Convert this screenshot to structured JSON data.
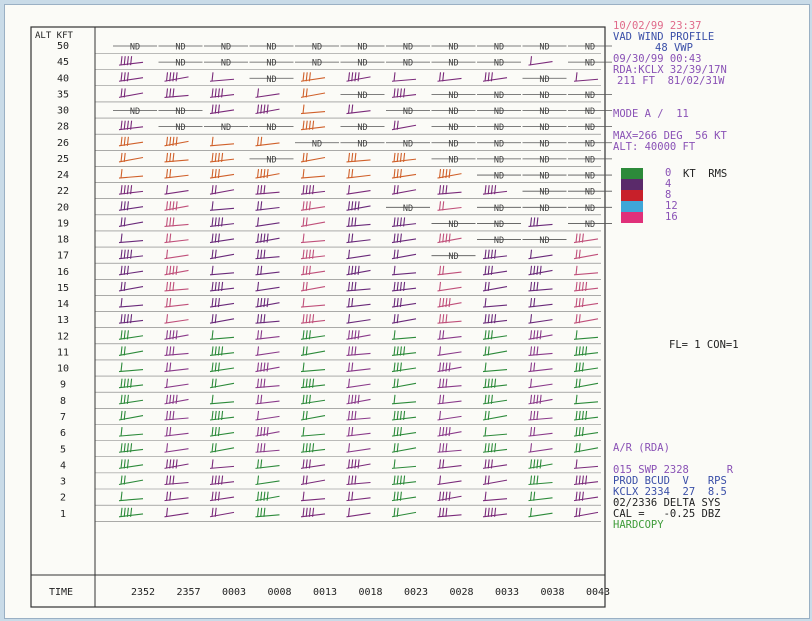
{
  "chart_data": {
    "type": "vad_wind_profile",
    "title": "VAD WIND PROFILE",
    "ylabel": "ALT KFT",
    "xlabel": "TIME",
    "altitudes": [
      "50",
      "45",
      "40",
      "35",
      "30",
      "28",
      "26",
      "25",
      "24",
      "22",
      "20",
      "19",
      "18",
      "17",
      "16",
      "15",
      "14",
      "13",
      "12",
      "11",
      "10",
      "9",
      "8",
      "7",
      "6",
      "5",
      "4",
      "3",
      "2",
      "1"
    ],
    "times": [
      "2352",
      "2357",
      "0003",
      "0008",
      "0013",
      "0018",
      "0023",
      "0028",
      "0033",
      "0038",
      "0043"
    ],
    "nd_label": "ND",
    "nd_cells": [
      [
        0,
        0
      ],
      [
        0,
        1
      ],
      [
        0,
        2
      ],
      [
        0,
        3
      ],
      [
        0,
        4
      ],
      [
        0,
        5
      ],
      [
        0,
        6
      ],
      [
        0,
        7
      ],
      [
        0,
        8
      ],
      [
        0,
        9
      ],
      [
        0,
        10
      ],
      [
        1,
        1
      ],
      [
        1,
        2
      ],
      [
        1,
        3
      ],
      [
        1,
        4
      ],
      [
        1,
        5
      ],
      [
        1,
        6
      ],
      [
        1,
        7
      ],
      [
        1,
        8
      ],
      [
        1,
        10
      ],
      [
        2,
        3
      ],
      [
        2,
        9
      ],
      [
        3,
        5
      ],
      [
        3,
        7
      ],
      [
        3,
        8
      ],
      [
        3,
        9
      ],
      [
        3,
        10
      ],
      [
        4,
        0
      ],
      [
        4,
        1
      ],
      [
        4,
        6
      ],
      [
        4,
        7
      ],
      [
        4,
        8
      ],
      [
        4,
        9
      ],
      [
        4,
        10
      ],
      [
        5,
        1
      ],
      [
        5,
        2
      ],
      [
        5,
        3
      ],
      [
        5,
        5
      ],
      [
        5,
        7
      ],
      [
        5,
        8
      ],
      [
        5,
        9
      ],
      [
        5,
        10
      ],
      [
        6,
        4
      ],
      [
        6,
        5
      ],
      [
        6,
        6
      ],
      [
        6,
        7
      ],
      [
        6,
        8
      ],
      [
        6,
        9
      ],
      [
        6,
        10
      ],
      [
        7,
        3
      ],
      [
        7,
        7
      ],
      [
        7,
        8
      ],
      [
        7,
        9
      ],
      [
        7,
        10
      ],
      [
        8,
        8
      ],
      [
        8,
        9
      ],
      [
        8,
        10
      ],
      [
        9,
        9
      ],
      [
        9,
        10
      ],
      [
        10,
        6
      ],
      [
        10,
        8
      ],
      [
        10,
        9
      ],
      [
        10,
        10
      ],
      [
        11,
        7
      ],
      [
        11,
        8
      ],
      [
        11,
        10
      ],
      [
        12,
        8
      ],
      [
        12,
        9
      ],
      [
        13,
        7
      ]
    ],
    "rms_legend": {
      "header": "KT  RMS",
      "levels": [
        {
          "label": "0",
          "color": "#2c8a3a"
        },
        {
          "label": "4",
          "color": "#5a2a6a"
        },
        {
          "label": "8",
          "color": "#c8202a"
        },
        {
          "label": "12",
          "color": "#3fa6d8"
        },
        {
          "label": "16",
          "color": "#e0307a"
        }
      ]
    }
  },
  "side_text": {
    "datetime": "10/02/99 23:37",
    "title_line": "VAD WIND PROFILE",
    "vwp_num": "48 VWP",
    "date2": "09/30/99 00:43",
    "rda_line1": "RDA:KCLX 32/39/17N",
    "rda_line2": "211 FT  81/02/31W",
    "mode": "MODE A /  11",
    "max_line": "MAX=266 DEG  56 KT",
    "alt_line": "ALT: 40000 FT",
    "fl_line": "FL= 1 CON=1",
    "ar_line": "A/R (RDA)",
    "b1": "015 SWP 2328      R",
    "b2": "PROD BCUD  V   RPS",
    "b3": "KCLX 2334  27  8.5",
    "b4": "02/2336 DELTA SYS",
    "b5": "CAL =   -0.25 DBZ",
    "b6": "HARDCOPY"
  }
}
